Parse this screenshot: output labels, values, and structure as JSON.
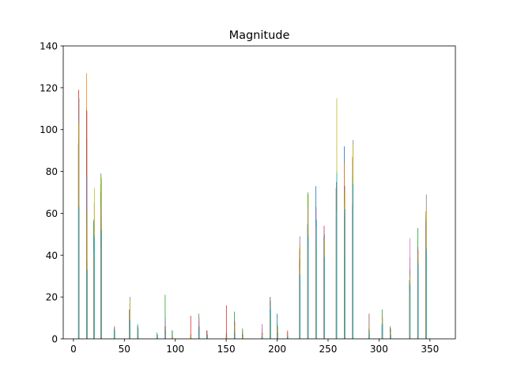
{
  "chart_data": {
    "type": "bar",
    "title": "Magnitude",
    "xlabel": "",
    "ylabel": "",
    "xlim": [
      -10,
      375
    ],
    "ylim": [
      0,
      140
    ],
    "x_ticks": [
      0,
      50,
      100,
      150,
      200,
      250,
      300,
      350
    ],
    "y_ticks": [
      0,
      20,
      40,
      60,
      80,
      100,
      120,
      140
    ],
    "grid": false,
    "legend": "none",
    "bar_width": 0.8,
    "palette": [
      "#1f77b4",
      "#ff7f0e",
      "#2ca02c",
      "#d62728",
      "#9467bd",
      "#8c564b",
      "#e377c2",
      "#7f7f7f",
      "#bcbd22",
      "#17becf"
    ],
    "groups": [
      {
        "x": 5,
        "values": [
          93,
          96,
          88,
          119,
          97,
          94,
          86,
          115,
          103,
          63
        ]
      },
      {
        "x": 13,
        "values": [
          110,
          127,
          96,
          109,
          78,
          43,
          55,
          37,
          61,
          33
        ]
      },
      {
        "x": 20,
        "values": [
          56,
          40,
          57,
          32,
          43,
          50,
          41,
          65,
          72,
          49
        ]
      },
      {
        "x": 27,
        "values": [
          70,
          74,
          79,
          53,
          64,
          55,
          44,
          59,
          77,
          52
        ]
      },
      {
        "x": 40,
        "values": [
          4,
          1,
          5,
          2,
          3,
          6,
          4,
          2,
          3,
          4
        ]
      },
      {
        "x": 55,
        "values": [
          14,
          10,
          8,
          13,
          6,
          12,
          17,
          20,
          18,
          9
        ]
      },
      {
        "x": 63,
        "values": [
          6,
          4,
          7,
          3,
          5,
          2,
          6,
          5,
          4,
          5
        ]
      },
      {
        "x": 82,
        "values": [
          2,
          1,
          3,
          1,
          2,
          1,
          2,
          0,
          1,
          2
        ]
      },
      {
        "x": 90,
        "values": [
          6,
          5,
          21,
          4,
          10,
          6,
          3,
          4,
          2,
          3
        ]
      },
      {
        "x": 97,
        "values": [
          4,
          2,
          4,
          1,
          1,
          0,
          1,
          0,
          1,
          0
        ]
      },
      {
        "x": 115,
        "values": [
          1,
          2,
          0,
          11,
          1,
          2,
          0,
          1,
          2,
          0
        ]
      },
      {
        "x": 123,
        "values": [
          6,
          5,
          12,
          4,
          9,
          8,
          10,
          6,
          2,
          5
        ]
      },
      {
        "x": 131,
        "values": [
          4,
          3,
          2,
          4,
          1,
          2,
          1,
          2,
          1,
          2
        ]
      },
      {
        "x": 150,
        "values": [
          1,
          2,
          0,
          16,
          1,
          3,
          0,
          2,
          1,
          0
        ]
      },
      {
        "x": 158,
        "values": [
          4,
          3,
          13,
          7,
          9,
          8,
          6,
          5,
          7,
          3
        ]
      },
      {
        "x": 166,
        "values": [
          3,
          4,
          5,
          2,
          1,
          2,
          1,
          0,
          1,
          0
        ]
      },
      {
        "x": 185,
        "values": [
          1,
          2,
          3,
          2,
          7,
          5,
          6,
          3,
          2,
          1
        ]
      },
      {
        "x": 193,
        "values": [
          14,
          12,
          20,
          10,
          20,
          18,
          15,
          9,
          12,
          15
        ]
      },
      {
        "x": 200,
        "values": [
          12,
          6,
          7,
          4,
          3,
          5,
          2,
          6,
          4,
          3
        ]
      },
      {
        "x": 210,
        "values": [
          3,
          4,
          2,
          1,
          3,
          2,
          4,
          1,
          2,
          1
        ]
      },
      {
        "x": 222,
        "values": [
          38,
          43,
          30,
          42,
          49,
          38,
          33,
          29,
          45,
          31
        ]
      },
      {
        "x": 230,
        "values": [
          55,
          43,
          70,
          40,
          63,
          55,
          46,
          53,
          69,
          49
        ]
      },
      {
        "x": 238,
        "values": [
          73,
          54,
          52,
          55,
          63,
          45,
          53,
          46,
          45,
          57
        ]
      },
      {
        "x": 246,
        "values": [
          49,
          43,
          37,
          54,
          52,
          39,
          27,
          50,
          48,
          39
        ]
      },
      {
        "x": 258,
        "values": [
          72,
          69,
          59,
          75,
          61,
          59,
          60,
          80,
          115,
          79
        ]
      },
      {
        "x": 266,
        "values": [
          92,
          84,
          41,
          60,
          61,
          73,
          65,
          59,
          70,
          62
        ]
      },
      {
        "x": 274,
        "values": [
          64,
          87,
          78,
          68,
          85,
          71,
          72,
          95,
          93,
          74
        ]
      },
      {
        "x": 290,
        "values": [
          3,
          5,
          2,
          1,
          4,
          12,
          3,
          2,
          5,
          4
        ]
      },
      {
        "x": 303,
        "values": [
          7,
          4,
          14,
          5,
          9,
          6,
          11,
          8,
          10,
          7
        ]
      },
      {
        "x": 311,
        "values": [
          5,
          3,
          6,
          4,
          2,
          5,
          3,
          2,
          4,
          2
        ]
      },
      {
        "x": 330,
        "values": [
          28,
          22,
          21,
          27,
          39,
          34,
          48,
          33,
          30,
          26
        ]
      },
      {
        "x": 338,
        "values": [
          44,
          29,
          53,
          43,
          41,
          39,
          43,
          38,
          42,
          36
        ]
      },
      {
        "x": 346,
        "values": [
          57,
          61,
          48,
          55,
          59,
          44,
          52,
          69,
          61,
          43
        ]
      }
    ]
  }
}
